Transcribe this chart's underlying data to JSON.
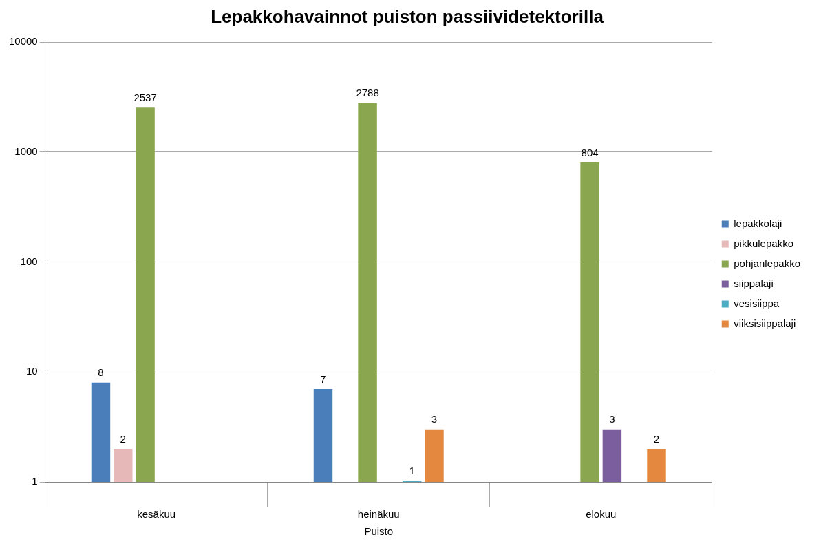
{
  "chart_data": {
    "type": "bar",
    "title": "Lepakkohavainnot puiston passiividetektorilla",
    "xlabel": "Puisto",
    "categories": [
      "kesäkuu",
      "heinäkuu",
      "elokuu"
    ],
    "series": [
      {
        "name": "lepakkolaji",
        "color": "#4a7ebb",
        "values": [
          8,
          7,
          null
        ]
      },
      {
        "name": "pikkulepakko",
        "color": "#e6b9b8",
        "values": [
          2,
          null,
          null
        ]
      },
      {
        "name": "pohjanlepakko",
        "color": "#8aa64e",
        "values": [
          2537,
          2788,
          804
        ]
      },
      {
        "name": "siippalaji",
        "color": "#7b5e9e",
        "values": [
          null,
          null,
          3
        ]
      },
      {
        "name": "vesisiippa",
        "color": "#4bacc6",
        "values": [
          null,
          1,
          null
        ]
      },
      {
        "name": "viiksisiippalaji",
        "color": "#e3883e",
        "values": [
          null,
          3,
          2
        ]
      }
    ],
    "log": true,
    "ylim": [
      1,
      10000
    ],
    "yticks": [
      1,
      10,
      100,
      1000,
      10000
    ],
    "grid": "y",
    "legend": "right",
    "data_labels": true
  }
}
